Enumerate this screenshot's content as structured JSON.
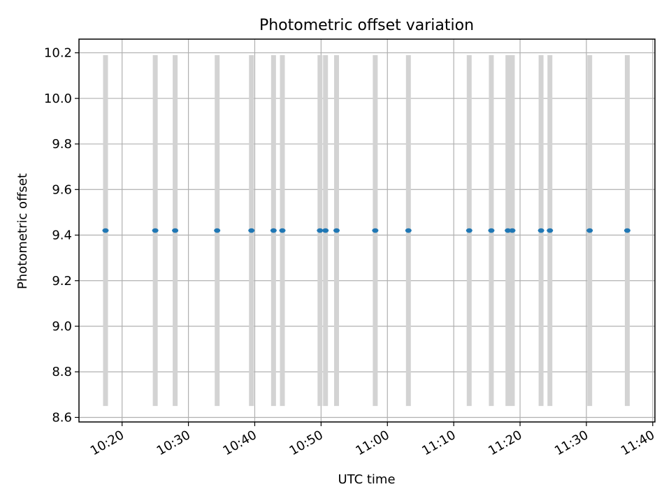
{
  "chart_data": {
    "type": "scatter",
    "title": "Photometric offset variation",
    "xlabel": "UTC time",
    "ylabel": "Photometric offset",
    "x_is_time": true,
    "xlim": [
      "10:13:30",
      "11:40:20"
    ],
    "ylim": [
      8.58,
      10.26
    ],
    "grid": true,
    "x_ticks": [
      "10:20",
      "10:30",
      "10:40",
      "10:50",
      "11:00",
      "11:10",
      "11:20",
      "11:30",
      "11:40"
    ],
    "y_ticks": [
      "8.6",
      "8.8",
      "9.0",
      "9.2",
      "9.4",
      "9.6",
      "9.8",
      "10.0",
      "10.2"
    ],
    "series": [
      {
        "x": [
          "10:17:30",
          "10:25:00",
          "10:28:00",
          "10:34:20",
          "10:39:30",
          "10:42:50",
          "10:44:10",
          "10:49:50",
          "10:50:40",
          "10:52:20",
          "10:58:10",
          "11:03:10",
          "11:12:20",
          "11:15:40",
          "11:18:10",
          "11:18:50",
          "11:23:10",
          "11:24:30",
          "11:30:30",
          "11:36:10"
        ],
        "y": [
          9.42,
          9.42,
          9.42,
          9.42,
          9.42,
          9.42,
          9.42,
          9.42,
          9.42,
          9.42,
          9.42,
          9.42,
          9.42,
          9.42,
          9.42,
          9.42,
          9.42,
          9.42,
          9.42,
          9.42
        ],
        "error_low": 8.65,
        "error_high": 10.19
      }
    ],
    "colors": {
      "points": "#1f77b4",
      "errorbars": "#d3d3d3",
      "grid": "#b0b0b0",
      "axes": "#000000"
    }
  }
}
